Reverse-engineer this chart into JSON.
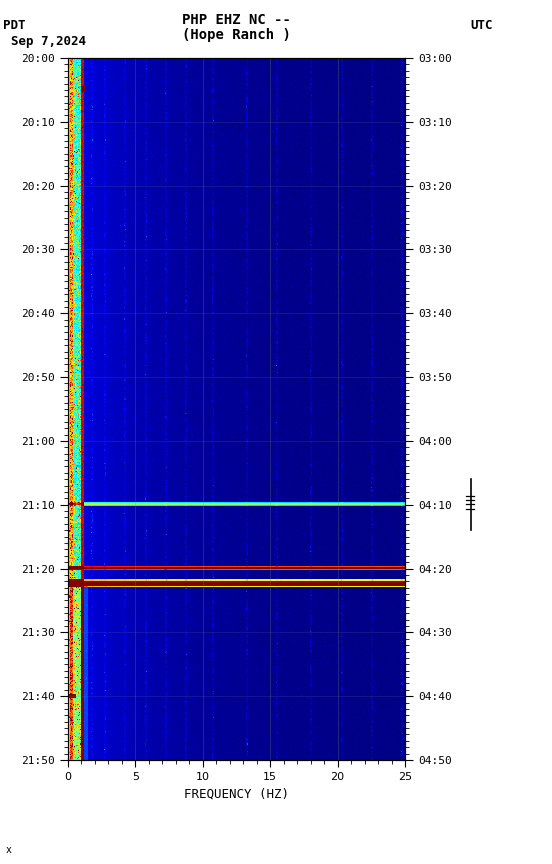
{
  "title_line1": "PHP EHZ NC --",
  "title_line2": "(Hope Ranch )",
  "label_left": "PDT",
  "label_date": "Sep 7,2024",
  "label_right": "UTC",
  "xlabel": "FREQUENCY (HZ)",
  "freq_min": 0,
  "freq_max": 25,
  "time_ticks_pdt": [
    "20:00",
    "20:10",
    "20:20",
    "20:30",
    "20:40",
    "20:50",
    "21:00",
    "21:10",
    "21:20",
    "21:30",
    "21:40",
    "21:50"
  ],
  "time_ticks_utc": [
    "03:00",
    "03:10",
    "03:20",
    "03:30",
    "03:40",
    "03:50",
    "04:00",
    "04:10",
    "04:20",
    "04:30",
    "04:40",
    "04:50"
  ],
  "fig_width": 5.52,
  "fig_height": 8.64,
  "dpi": 100,
  "seed": 42,
  "n_time": 660,
  "n_freq": 500
}
